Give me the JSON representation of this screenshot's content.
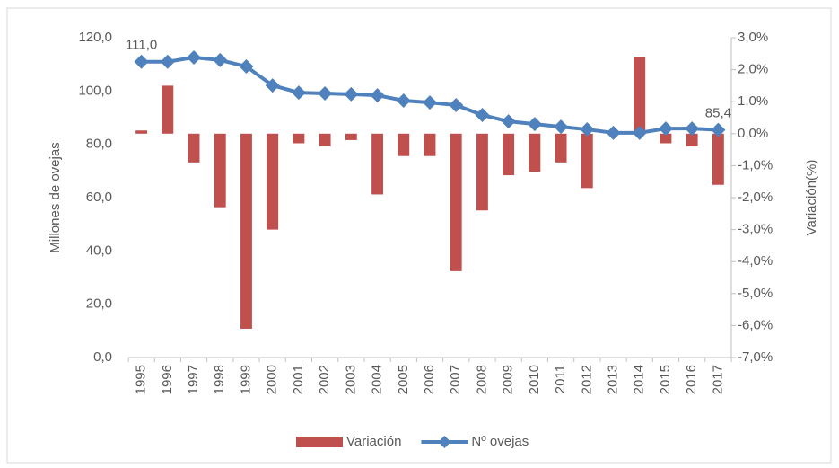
{
  "chart_data": {
    "type": "bar-line",
    "categories": [
      "1995",
      "1996",
      "1997",
      "1998",
      "1999",
      "2000",
      "2001",
      "2002",
      "2003",
      "2004",
      "2005",
      "2006",
      "2007",
      "2008",
      "2009",
      "2010",
      "2011",
      "2012",
      "2013",
      "2014",
      "2015",
      "2016",
      "2017"
    ],
    "series": [
      {
        "name": "Variación",
        "type": "bar",
        "axis": "y2",
        "color": "#c0504d",
        "values": [
          0.1,
          1.5,
          -0.9,
          -2.3,
          -6.1,
          -3.0,
          -0.3,
          -0.4,
          -0.2,
          -1.9,
          -0.7,
          -0.7,
          -4.3,
          -2.4,
          -1.3,
          -1.2,
          -0.9,
          -1.7,
          0,
          2.4,
          -0.3,
          -0.4,
          -1.6
        ]
      },
      {
        "name": "Nº ovejas",
        "type": "line",
        "color": "#4f81bd",
        "values": [
          111.0,
          111.0,
          112.6,
          111.6,
          109.2,
          102.1,
          99.4,
          99.1,
          98.8,
          98.4,
          96.4,
          95.7,
          94.7,
          91.0,
          88.6,
          87.6,
          86.6,
          85.6,
          84.3,
          84.3,
          85.9,
          85.9,
          85.4
        ],
        "value_labels": [
          "111,0",
          null,
          null,
          null,
          null,
          null,
          null,
          null,
          null,
          null,
          null,
          null,
          null,
          null,
          null,
          null,
          null,
          null,
          null,
          null,
          null,
          null,
          "85,4"
        ]
      }
    ],
    "y_label": "Millones de ovejas",
    "y2_label": "Variación(%)",
    "ylim": [
      0,
      120
    ],
    "yticks": [
      {
        "value": 0,
        "label": "0,0"
      },
      {
        "value": 20,
        "label": "20,0"
      },
      {
        "value": 40,
        "label": "40,0"
      },
      {
        "value": 60,
        "label": "60,0"
      },
      {
        "value": 80,
        "label": "80,0"
      },
      {
        "value": 100,
        "label": "100,0"
      },
      {
        "value": 120,
        "label": "120,0"
      }
    ],
    "y2lim": [
      -7,
      3
    ],
    "y2ticks": [
      {
        "value": -7,
        "label": "-7,0%"
      },
      {
        "value": -6,
        "label": "-6,0%"
      },
      {
        "value": -5,
        "label": "-5,0%"
      },
      {
        "value": -4,
        "label": "-4,0%"
      },
      {
        "value": -3,
        "label": "-3,0%"
      },
      {
        "value": -2,
        "label": "-2,0%"
      },
      {
        "value": -1,
        "label": "-1,0%"
      },
      {
        "value": 0,
        "label": "0,0%"
      },
      {
        "value": 1,
        "label": "1,0%"
      },
      {
        "value": 2,
        "label": "2,0%"
      },
      {
        "value": 3,
        "label": "3,0%"
      }
    ],
    "legend": "bottom",
    "grid": false
  }
}
